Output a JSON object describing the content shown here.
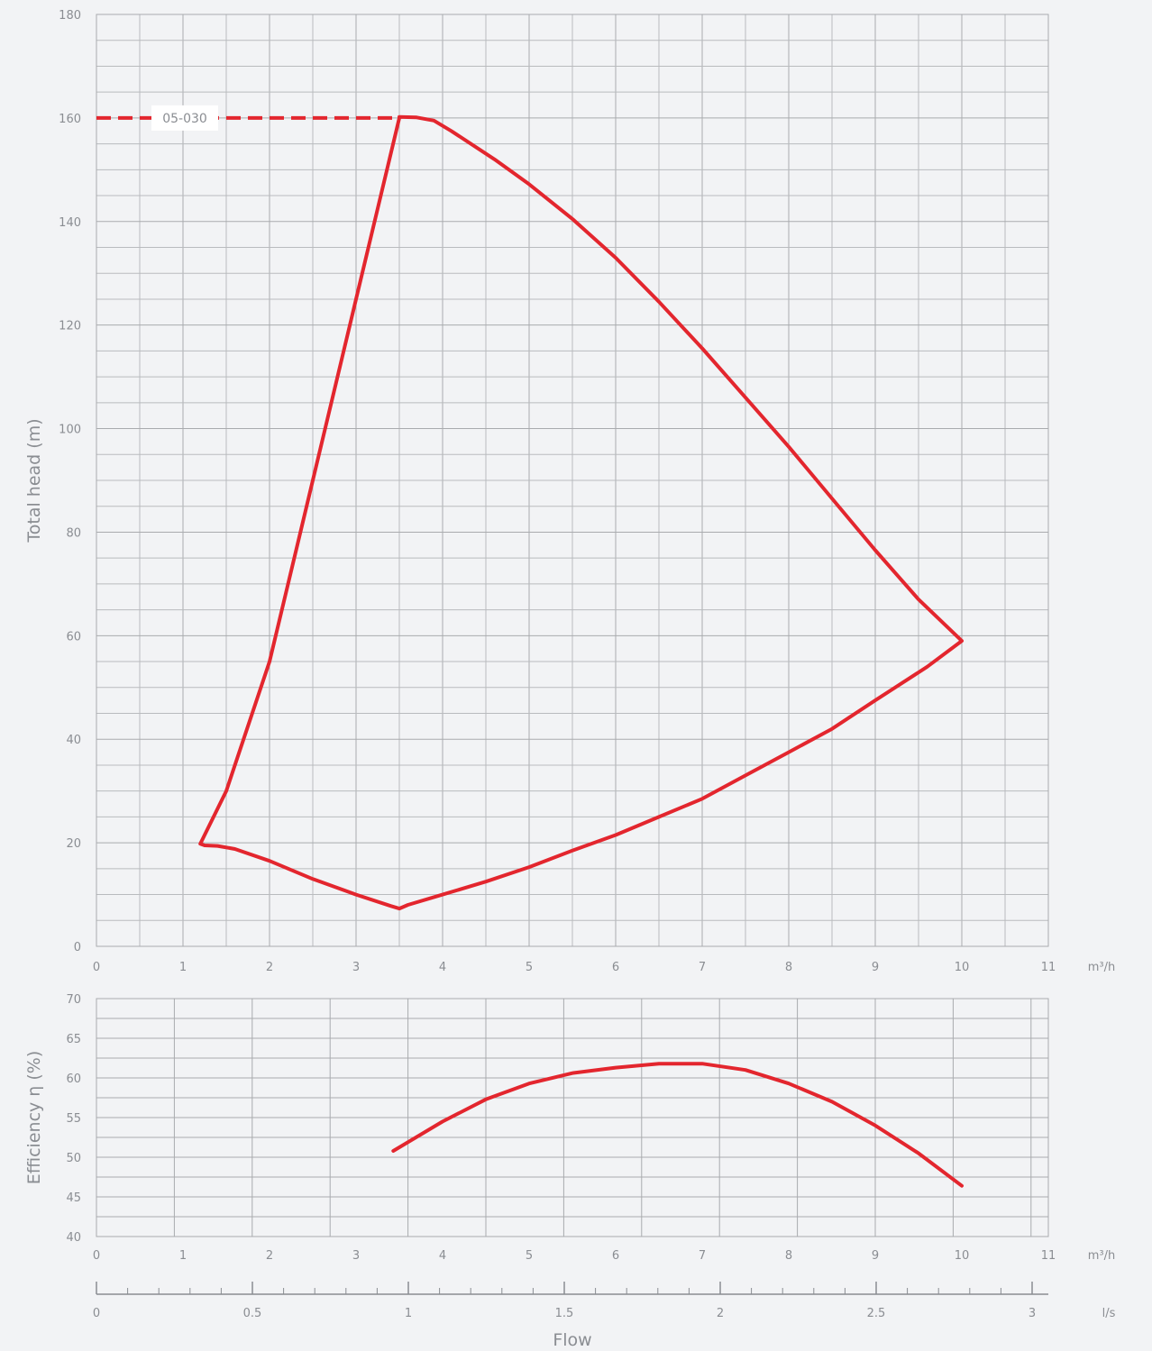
{
  "chart_data": [
    {
      "type": "line",
      "ylabel": "Total head (m)",
      "x_unit": "m³/h",
      "xlim": [
        0,
        11
      ],
      "ylim": [
        0,
        180
      ],
      "x_ticks": [
        "0",
        "1",
        "2",
        "3",
        "4",
        "5",
        "6",
        "7",
        "8",
        "9",
        "10",
        "11"
      ],
      "y_ticks": [
        "0",
        "20",
        "40",
        "60",
        "80",
        "100",
        "120",
        "140",
        "160",
        "180"
      ],
      "grid": true,
      "annotation": {
        "label": "05-030",
        "y": 160,
        "x_from": 0,
        "x_to": 3.5,
        "style": "dashed"
      },
      "series": [
        {
          "color": "#e3262e",
          "points": [
            [
              3.5,
              160
            ],
            [
              3.5,
              160.2
            ],
            [
              3.7,
              160.1
            ],
            [
              3.9,
              159.5
            ],
            [
              4.1,
              157.5
            ],
            [
              4.6,
              152
            ],
            [
              5.0,
              147.2
            ],
            [
              5.5,
              140.5
            ],
            [
              6.0,
              133
            ],
            [
              6.5,
              124.5
            ],
            [
              7.0,
              115.5
            ],
            [
              7.5,
              106
            ],
            [
              8.0,
              96.5
            ],
            [
              8.5,
              86.5
            ],
            [
              9.0,
              76.5
            ],
            [
              9.5,
              67
            ],
            [
              10.0,
              59
            ],
            [
              9.6,
              54
            ],
            [
              9.0,
              47.5
            ],
            [
              8.5,
              42
            ],
            [
              8.0,
              37.5
            ],
            [
              7.5,
              33
            ],
            [
              7.0,
              28.5
            ],
            [
              6.5,
              25
            ],
            [
              6.0,
              21.5
            ],
            [
              5.5,
              18.5
            ],
            [
              5.0,
              15.3
            ],
            [
              4.5,
              12.5
            ],
            [
              4.0,
              10
            ],
            [
              3.6,
              8
            ],
            [
              3.5,
              7.3
            ],
            [
              3.4,
              7.8
            ],
            [
              3.0,
              10
            ],
            [
              2.5,
              13
            ],
            [
              2.0,
              16.5
            ],
            [
              1.6,
              18.8
            ],
            [
              1.4,
              19.4
            ],
            [
              1.25,
              19.5
            ],
            [
              1.2,
              19.8
            ],
            [
              1.5,
              30
            ],
            [
              2.0,
              55
            ],
            [
              2.5,
              90
            ],
            [
              3.0,
              125
            ],
            [
              3.5,
              160
            ]
          ]
        }
      ]
    },
    {
      "type": "line",
      "ylabel": "Efficiency η (%)",
      "x_unit": "m³/h",
      "xlim": [
        0,
        11
      ],
      "ylim": [
        40,
        70
      ],
      "x_ticks": [
        "0",
        "1",
        "2",
        "3",
        "4",
        "5",
        "6",
        "7",
        "8",
        "9",
        "10",
        "11"
      ],
      "y_ticks": [
        "40",
        "45",
        "50",
        "55",
        "60",
        "65",
        "70"
      ],
      "grid": true,
      "series": [
        {
          "color": "#e3262e",
          "points": [
            [
              3.43,
              50.8
            ],
            [
              4.0,
              54.5
            ],
            [
              4.5,
              57.3
            ],
            [
              5.0,
              59.3
            ],
            [
              5.5,
              60.6
            ],
            [
              6.0,
              61.3
            ],
            [
              6.5,
              61.8
            ],
            [
              7.0,
              61.8
            ],
            [
              7.5,
              61
            ],
            [
              8.0,
              59.3
            ],
            [
              8.5,
              57
            ],
            [
              9.0,
              54
            ],
            [
              9.5,
              50.5
            ],
            [
              10.0,
              46.4
            ]
          ]
        }
      ]
    },
    {
      "type": "axis",
      "xlabel": "Flow",
      "x_unit": "l/s",
      "xlim": [
        0,
        3.05
      ],
      "x_ticks": [
        "0",
        "0.5",
        "1",
        "1.5",
        "2",
        "2.5",
        "3"
      ]
    }
  ]
}
